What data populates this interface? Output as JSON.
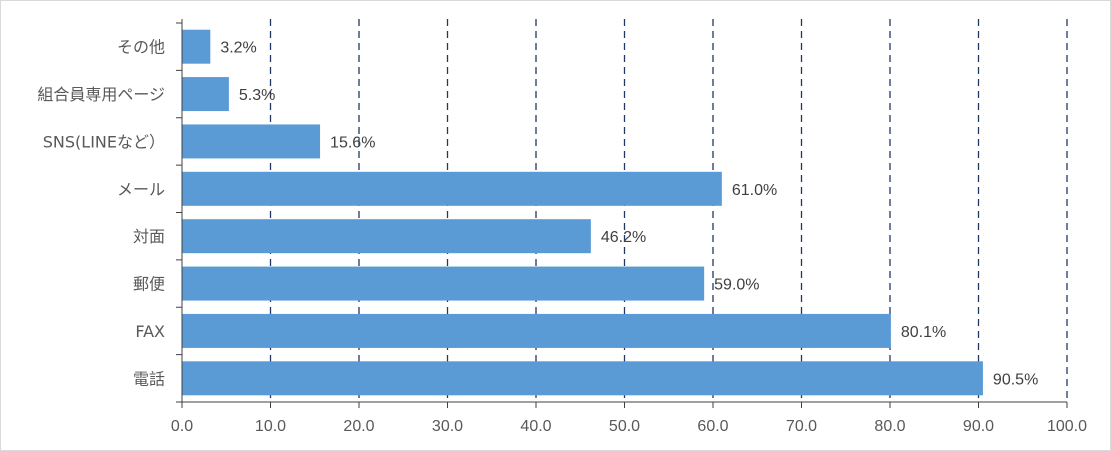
{
  "chart_data": {
    "type": "bar",
    "orientation": "horizontal",
    "categories": [
      "その他",
      "組合員専用ページ",
      "SNS(LINEなど）",
      "メール",
      "対面",
      "郵便",
      "FAX",
      "電話"
    ],
    "values": [
      3.2,
      5.3,
      15.6,
      61.0,
      46.2,
      59.0,
      80.1,
      90.5
    ],
    "value_labels": [
      "3.2%",
      "5.3%",
      "15.6%",
      "61.0%",
      "46.2%",
      "59.0%",
      "80.1%",
      "90.5%"
    ],
    "xlim": [
      0,
      100
    ],
    "x_ticks": [
      "0.0",
      "10.0",
      "20.0",
      "30.0",
      "40.0",
      "50.0",
      "60.0",
      "70.0",
      "80.0",
      "90.0",
      "100.0"
    ],
    "x_tick_values": [
      0,
      10,
      20,
      30,
      40,
      50,
      60,
      70,
      80,
      90,
      100
    ],
    "grid": "vertical-dashed",
    "bar_color": "#5b9bd5",
    "grid_color": "#1f3864",
    "title": "",
    "xlabel": "",
    "ylabel": ""
  }
}
